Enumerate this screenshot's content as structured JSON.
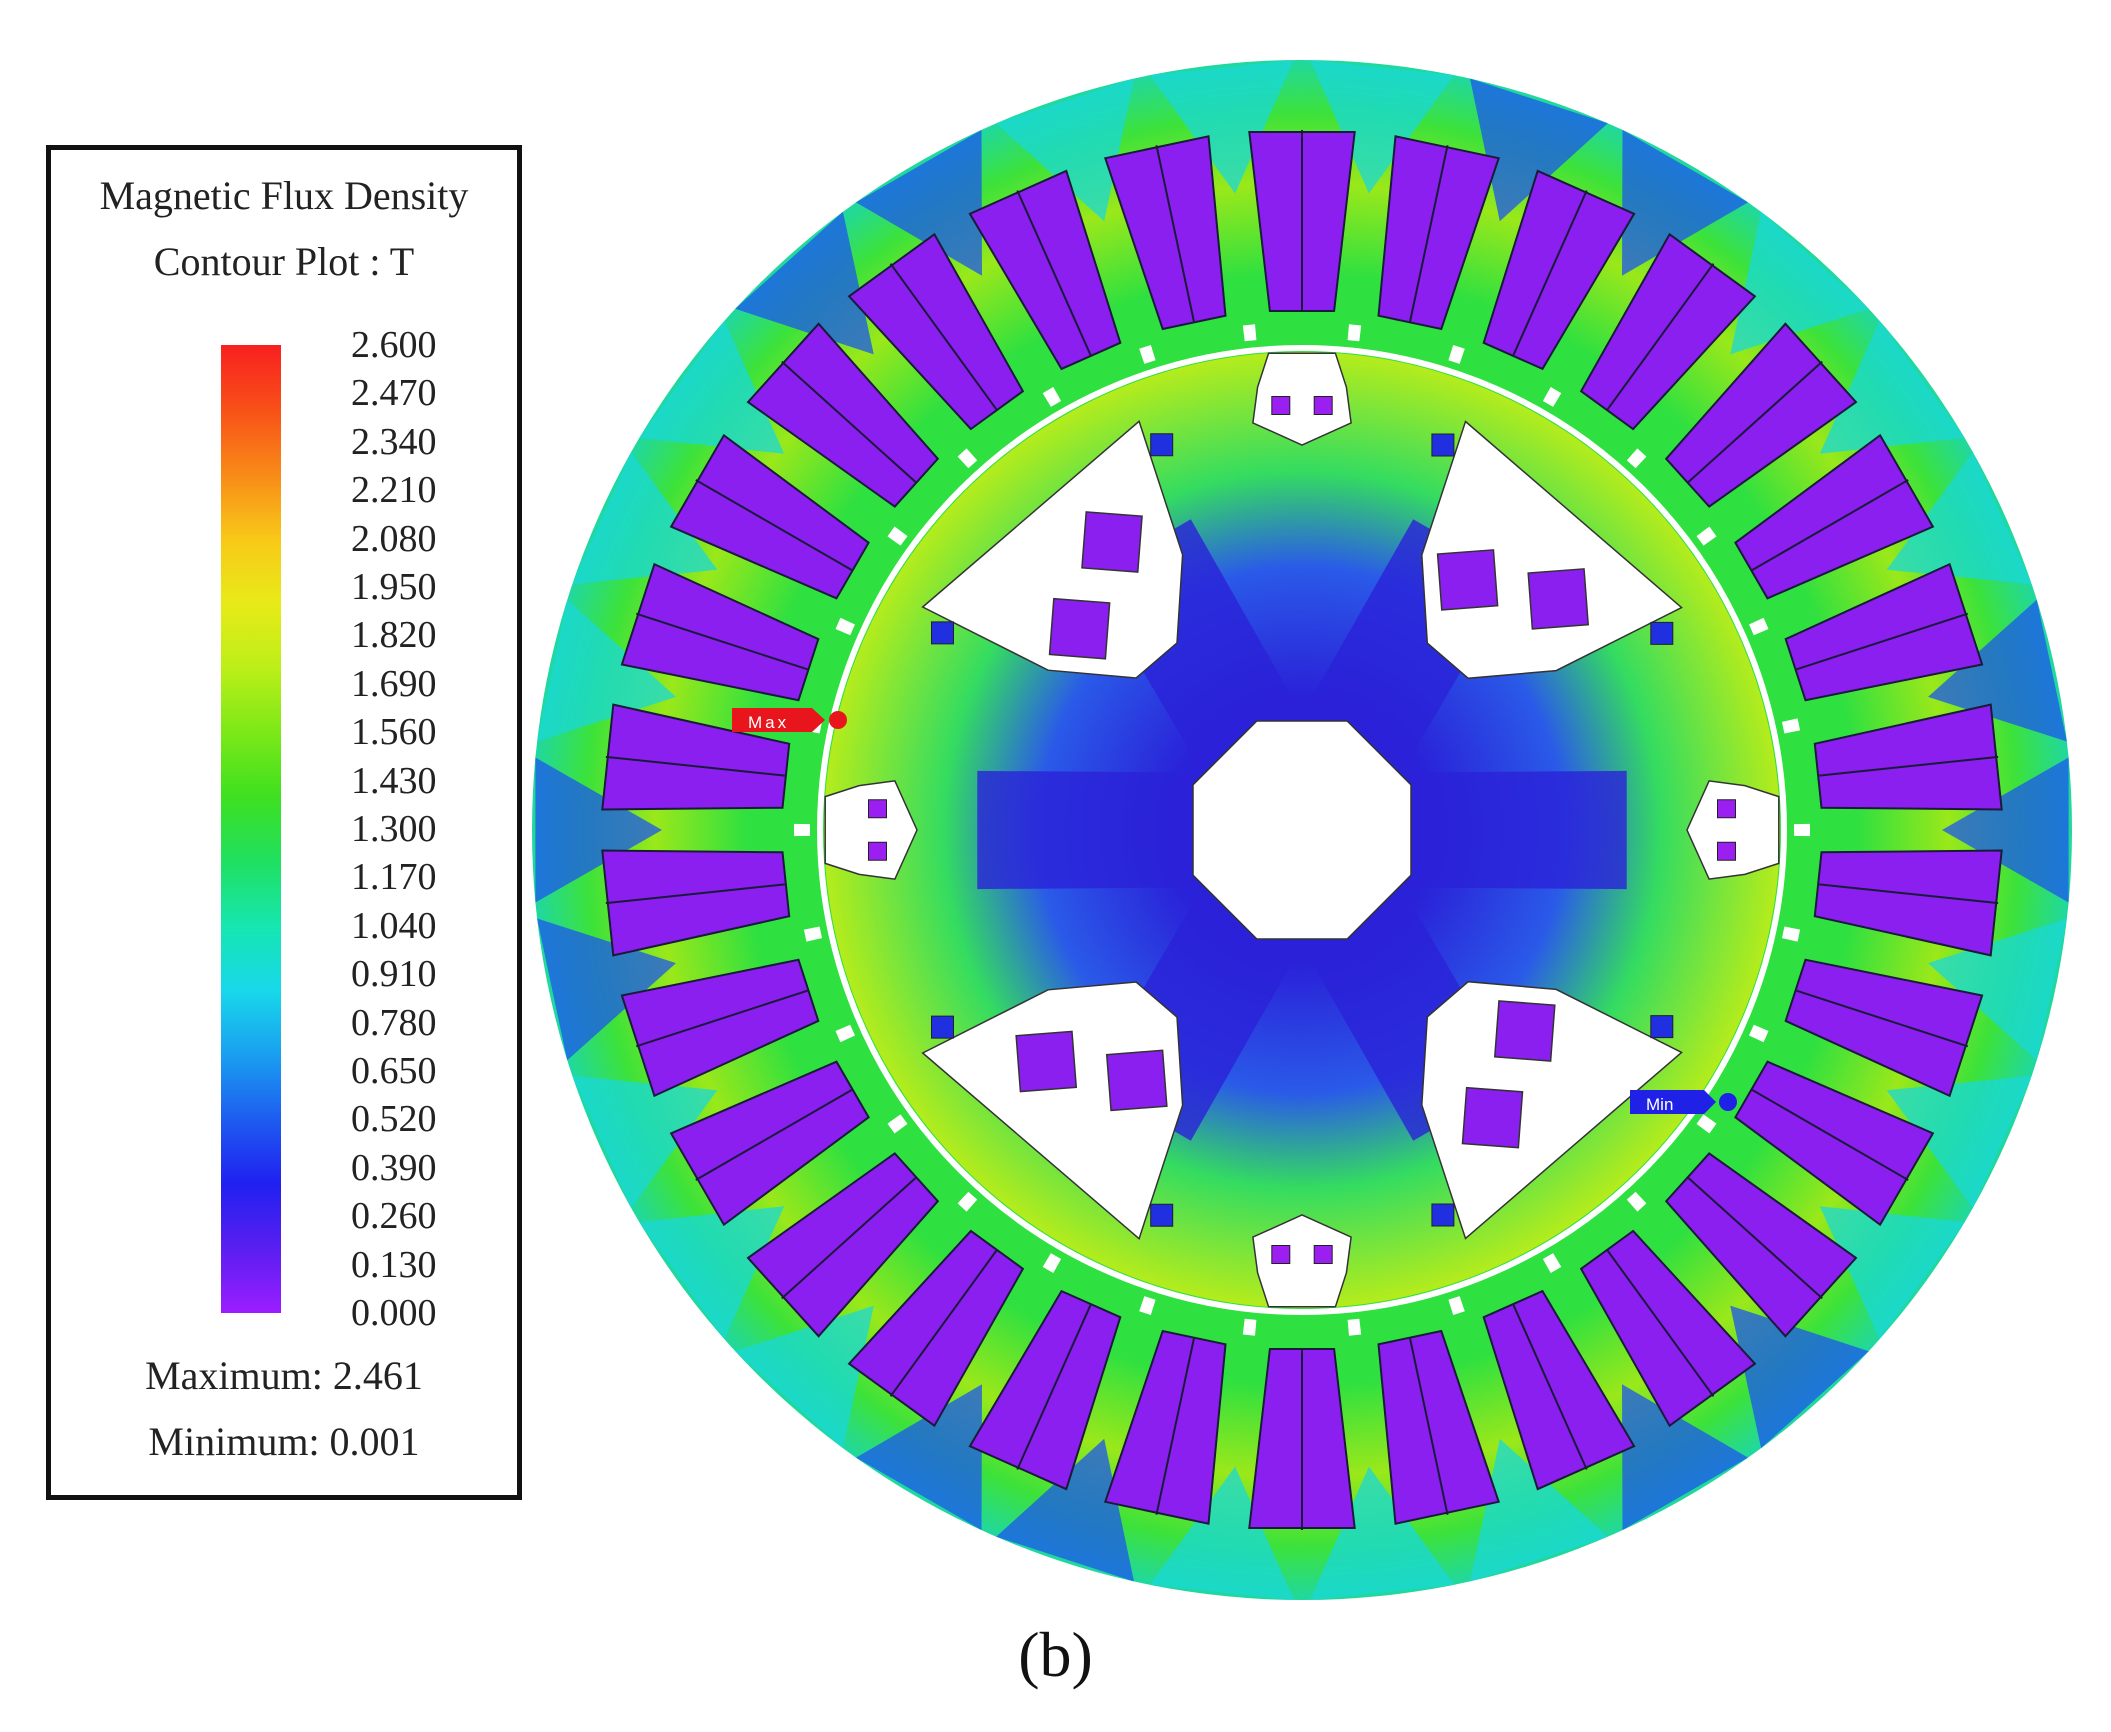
{
  "legend": {
    "title_line1": "Magnetic Flux Density",
    "title_line2": "Contour Plot : T",
    "ticks": [
      "2.600",
      "2.470",
      "2.340",
      "2.210",
      "2.080",
      "1.950",
      "1.820",
      "1.690",
      "1.560",
      "1.430",
      "1.300",
      "1.170",
      "1.040",
      "0.910",
      "0.780",
      "0.650",
      "0.520",
      "0.390",
      "0.260",
      "0.130",
      "0.000"
    ],
    "maximum_text": "Maximum: 2.461",
    "minimum_text": "Minimum: 0.001",
    "colorscale": [
      "#9b1dff",
      "#5a1ff0",
      "#2020f0",
      "#1e5cf0",
      "#1a9ff0",
      "#18d8ea",
      "#16e6b0",
      "#20e060",
      "#3ee020",
      "#7ce818",
      "#bcef18",
      "#e8ea18",
      "#f8c818",
      "#f88a18",
      "#f85018",
      "#f82020"
    ]
  },
  "markers": {
    "max_label": "Max",
    "min_label": "Min",
    "max_color": "#e8161c",
    "min_color": "#1f22e6"
  },
  "figure": {
    "label": "(b)"
  },
  "colors": {
    "slot_fill": "#8a1ff0",
    "slot_stroke": "#1a1a3a",
    "core_low": "#2a20d8",
    "core_mid": "#20e070",
    "core_high": "#c8ee1c",
    "background": "#ffffff"
  }
}
